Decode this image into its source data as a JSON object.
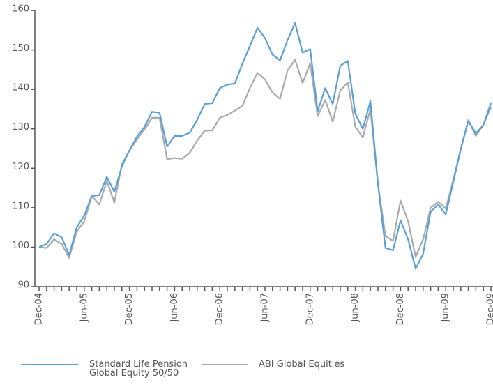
{
  "chart_data": {
    "type": "line",
    "categories": [
      "Dec-04",
      null,
      null,
      null,
      null,
      null,
      "Jun-05",
      null,
      null,
      null,
      null,
      null,
      "Dec-05",
      null,
      null,
      null,
      null,
      null,
      "Jun-06",
      null,
      null,
      null,
      null,
      null,
      "Dec-06",
      null,
      null,
      null,
      null,
      null,
      "Jun-07",
      null,
      null,
      null,
      null,
      null,
      "Dec-07",
      null,
      null,
      null,
      null,
      null,
      "Jun-08",
      null,
      null,
      null,
      null,
      null,
      "Dec-08",
      null,
      null,
      null,
      null,
      null,
      "Jun-09",
      null,
      null,
      null,
      null,
      null,
      "Dec-09"
    ],
    "series": [
      {
        "name": "Standard Life Pension Global Equity 50/50",
        "color": "#5aa0d8",
        "values": [
          100,
          100.8,
          103.5,
          102.5,
          98,
          105,
          108,
          113,
          113.2,
          117.8,
          114,
          120.5,
          124.5,
          128,
          130.5,
          134.3,
          134.1,
          125.5,
          128.2,
          128.2,
          129,
          132.3,
          136.3,
          136.5,
          140.3,
          141.2,
          141.5,
          146.5,
          151,
          155.6,
          153,
          148.8,
          147.3,
          152.5,
          156.8,
          149.3,
          150.2,
          134.5,
          140.3,
          136.3,
          146,
          147.2,
          133.8,
          130,
          137,
          116,
          99.8,
          99.2,
          106.8,
          102,
          94.5,
          98.3,
          109,
          110.8,
          108.3,
          116.5,
          124.8,
          132,
          128.8,
          131,
          136.5
        ]
      },
      {
        "name": "ABI Global Equities",
        "color": "#a8aaad",
        "values": [
          100,
          99.8,
          102,
          100.8,
          97.3,
          104,
          106.5,
          113,
          110.8,
          116.8,
          111.3,
          121,
          124.5,
          127.3,
          129.8,
          132.8,
          132.8,
          122.3,
          122.6,
          122.4,
          123.9,
          127,
          129.5,
          129.6,
          132.8,
          133.5,
          134.6,
          135.8,
          140.3,
          144.2,
          142.5,
          139.2,
          137.6,
          144.8,
          147.5,
          141.6,
          146.6,
          133.2,
          137.3,
          131.8,
          139.7,
          141.8,
          130.5,
          127.8,
          135,
          116,
          102.8,
          101.6,
          111.8,
          106.6,
          97.5,
          102,
          110,
          111.5,
          109.8,
          117,
          125,
          132.2,
          128.2,
          131,
          135.5
        ]
      }
    ],
    "ylim": [
      90,
      160
    ],
    "yticks": [
      90,
      100,
      110,
      120,
      130,
      140,
      150,
      160
    ],
    "grid": false
  }
}
